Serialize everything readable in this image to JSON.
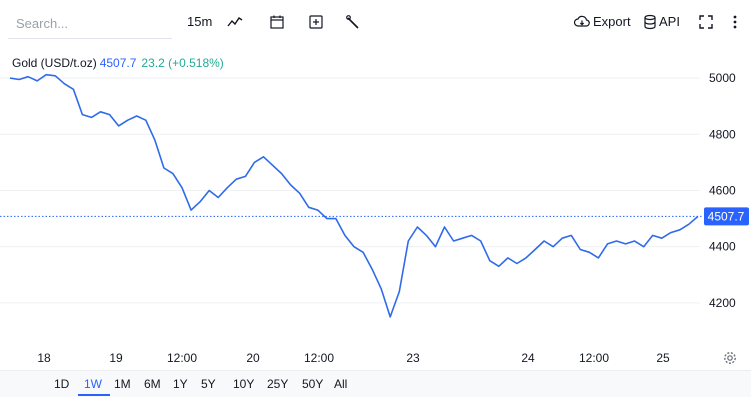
{
  "toolbar": {
    "search_placeholder": "Search...",
    "interval": "15m",
    "export_label": "Export",
    "api_label": "API"
  },
  "legend": {
    "symbol": "Gold (USD/t.oz)",
    "last": "4507.7",
    "change": "23.2 (+0.518%)"
  },
  "colors": {
    "line": "#2f6be8",
    "accent": "#2962ff",
    "positive": "#22ab94",
    "price_tag": "#2962ff"
  },
  "range_selector": [
    "1D",
    "1W",
    "1M",
    "6M",
    "1Y",
    "5Y",
    "10Y",
    "25Y",
    "50Y",
    "All"
  ],
  "range_active": "1W",
  "chart_data": {
    "type": "line",
    "series": [
      {
        "x": [
          "2026-01-17 18:00",
          "2026-01-18 00:00",
          "2026-01-18 06:00",
          "2026-01-18 12:00",
          "2026-01-18 18:00",
          "2026-01-19 00:00",
          "2026-01-19 06:00",
          "2026-01-19 12:00",
          "2026-01-19 18:00",
          "2026-01-20 00:00",
          "2026-01-20 06:00",
          "2026-01-20 12:00",
          "2026-01-20 18:00",
          "2026-01-21 00:00",
          "2026-01-21 06:00",
          "2026-01-21 12:00",
          "2026-01-21 18:00",
          "2026-01-22 00:00",
          "2026-01-22 06:00",
          "2026-01-22 12:00",
          "2026-01-22 18:00",
          "2026-01-23 00:00",
          "2026-01-23 06:00",
          "2026-01-23 12:00",
          "2026-01-23 18:00",
          "2026-01-24 00:00",
          "2026-01-24 06:00",
          "2026-01-24 12:00",
          "2026-01-24 18:00",
          "2026-01-25 00:00",
          "2026-01-25 06:00",
          "2026-01-25 12:00",
          "2026-01-25 18:00",
          "2026-01-26 00:00",
          "2026-01-26 06:00",
          "2026-01-26 12:00",
          "2026-01-26 18:00",
          "2026-01-27 00:00",
          "2026-01-27 06:00",
          "2026-01-27 12:00",
          "2026-01-27 18:00",
          "2026-01-28 00:00",
          "2026-01-28 06:00",
          "2026-01-28 12:00",
          "2026-01-28 18:00",
          "2026-01-29 00:00",
          "2026-01-29 06:00",
          "2026-01-29 12:00",
          "2026-01-29 18:00",
          "2026-01-30 00:00",
          "2026-01-30 06:00",
          "2026-01-30 12:00",
          "2026-01-30 18:00",
          "2026-01-31 00:00",
          "2026-01-31 06:00",
          "2026-01-31 12:00",
          "2026-01-31 18:00",
          "2026-02-01 00:00",
          "2026-02-01 06:00",
          "2026-02-01 12:00",
          "2026-02-01 18:00",
          "2026-02-02 00:00",
          "2026-02-02 06:00",
          "2026-02-02 12:00",
          "2026-02-02 18:00",
          "2026-02-03 00:00",
          "2026-02-03 06:00",
          "2026-02-03 12:00",
          "2026-02-03 18:00",
          "2026-02-04 00:00",
          "2026-02-04 06:00",
          "2026-02-04 12:00",
          "2026-02-04 18:00",
          "2026-02-05 00:00",
          "2026-02-05 06:00",
          "2026-02-05 12:00",
          "2026-02-05 18:00"
        ],
        "values": [
          5000,
          4995,
          5005,
          4990,
          5012,
          5008,
          4980,
          4960,
          4870,
          4860,
          4880,
          4870,
          4830,
          4850,
          4865,
          4850,
          4780,
          4680,
          4660,
          4610,
          4530,
          4560,
          4600,
          4575,
          4610,
          4640,
          4650,
          4700,
          4720,
          4690,
          4660,
          4620,
          4590,
          4540,
          4530,
          4500,
          4500,
          4440,
          4400,
          4380,
          4320,
          4250,
          4150,
          4240,
          4420,
          4470,
          4440,
          4400,
          4470,
          4420,
          4430,
          4440,
          4420,
          4350,
          4330,
          4360,
          4340,
          4360,
          4390,
          4420,
          4400,
          4430,
          4440,
          4390,
          4380,
          4360,
          4410,
          4420,
          4410,
          4420,
          4400,
          4440,
          4430,
          4450,
          4460,
          4480,
          4507.7
        ]
      }
    ],
    "x_ticks": [
      "18",
      "19",
      "12:00",
      "20",
      "12:00",
      "23",
      "24",
      "12:00",
      "25"
    ],
    "y_ticks": [
      4200,
      4400,
      4600,
      4800,
      5000
    ],
    "ylim": [
      4050,
      5100
    ],
    "last_value": 4507.7,
    "grid": true
  }
}
